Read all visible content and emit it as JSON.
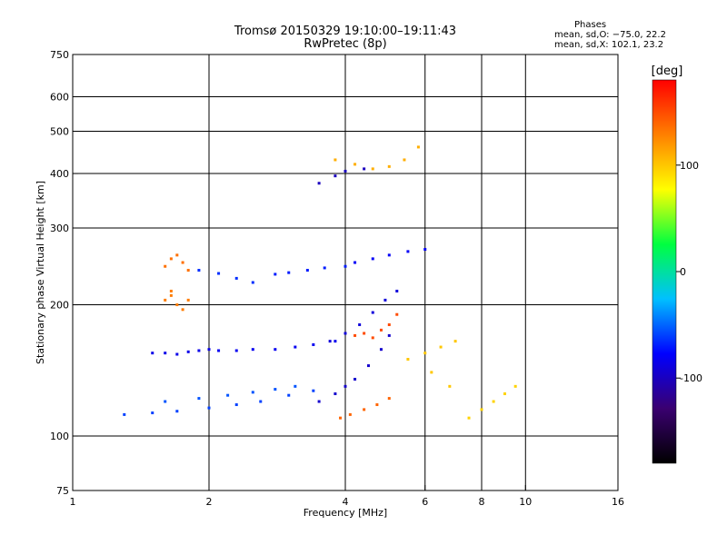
{
  "header": {
    "title": "Tromsø 20150329 19:10:00–19:11:43",
    "subtitle": "RwPretec (8p)"
  },
  "stats": {
    "heading": "Phases",
    "line_o": "mean, sd,O: −75.0, 22.2",
    "line_x": "mean, sd,X: 102.1, 23.2"
  },
  "chart_data": {
    "type": "scatter",
    "title": "Tromsø 20150329 19:10:00–19:11:43",
    "subtitle": "RwPretec (8p)",
    "xlabel": "Frequency [MHz]",
    "ylabel": "Stationary phase Virtual Height [km]",
    "x_scale": "log",
    "y_scale": "log",
    "xlim": [
      1,
      16
    ],
    "ylim": [
      75,
      750
    ],
    "x_ticks": [
      1,
      2,
      4,
      6,
      8,
      10,
      16
    ],
    "y_ticks": [
      75,
      100,
      200,
      300,
      400,
      500,
      600,
      750
    ],
    "x_gridlines": [
      2,
      4,
      6,
      8,
      10
    ],
    "y_gridlines": [
      100,
      200,
      300,
      400,
      500,
      600
    ],
    "grid": true,
    "colorbar": {
      "label": "[deg]",
      "ticks": [
        100,
        0,
        -100
      ],
      "range": [
        -180,
        180
      ],
      "colors": [
        "#000000",
        "#3a0070",
        "#0000ff",
        "#00c0ff",
        "#00ff40",
        "#ffff00",
        "#ff8000",
        "#ff0000"
      ]
    },
    "series": [
      {
        "o_trace": true,
        "phase": -85,
        "points": [
          [
            1.5,
            155
          ],
          [
            1.6,
            155
          ],
          [
            1.7,
            154
          ],
          [
            1.8,
            156
          ],
          [
            1.9,
            157
          ],
          [
            2.0,
            158
          ]
        ]
      },
      {
        "o_trace": true,
        "phase": -82,
        "points": [
          [
            2.1,
            157
          ],
          [
            2.3,
            157
          ],
          [
            2.5,
            158
          ],
          [
            2.8,
            158
          ],
          [
            3.1,
            160
          ],
          [
            3.4,
            162
          ],
          [
            3.8,
            165
          ]
        ]
      },
      {
        "o_trace": true,
        "phase": -60,
        "points": [
          [
            1.3,
            112
          ],
          [
            1.5,
            113
          ],
          [
            1.7,
            114
          ],
          [
            2.0,
            116
          ],
          [
            2.3,
            118
          ],
          [
            2.6,
            120
          ],
          [
            3.0,
            124
          ],
          [
            3.4,
            127
          ]
        ]
      },
      {
        "o_trace": true,
        "phase": -55,
        "points": [
          [
            1.6,
            120
          ],
          [
            1.9,
            122
          ],
          [
            2.2,
            124
          ],
          [
            2.5,
            126
          ],
          [
            2.8,
            128
          ],
          [
            3.1,
            130
          ]
        ]
      },
      {
        "o_trace": true,
        "phase": -95,
        "points": [
          [
            3.5,
            120
          ],
          [
            3.8,
            125
          ],
          [
            4.0,
            130
          ],
          [
            4.2,
            135
          ],
          [
            4.5,
            145
          ],
          [
            4.8,
            158
          ],
          [
            5.0,
            170
          ]
        ]
      },
      {
        "o_trace": true,
        "phase": -90,
        "points": [
          [
            3.7,
            165
          ],
          [
            4.0,
            172
          ],
          [
            4.3,
            180
          ],
          [
            4.6,
            192
          ],
          [
            4.9,
            205
          ],
          [
            5.2,
            215
          ]
        ]
      },
      {
        "o_trace": true,
        "phase": -80,
        "points": [
          [
            4.2,
            250
          ],
          [
            4.6,
            255
          ],
          [
            5.0,
            260
          ],
          [
            5.5,
            265
          ],
          [
            6.0,
            268
          ]
        ]
      },
      {
        "o_trace": true,
        "phase": -70,
        "points": [
          [
            2.8,
            235
          ],
          [
            3.0,
            237
          ],
          [
            3.3,
            240
          ],
          [
            3.6,
            243
          ],
          [
            4.0,
            245
          ]
        ]
      },
      {
        "o_trace": true,
        "phase": -65,
        "points": [
          [
            1.9,
            240
          ],
          [
            2.1,
            236
          ],
          [
            2.3,
            230
          ],
          [
            2.5,
            225
          ]
        ]
      },
      {
        "o_trace": true,
        "phase": -100,
        "points": [
          [
            3.5,
            380
          ],
          [
            3.8,
            395
          ],
          [
            4.0,
            405
          ],
          [
            4.4,
            410
          ]
        ]
      },
      {
        "o_trace": false,
        "phase": 130,
        "points": [
          [
            1.6,
            205
          ],
          [
            1.65,
            210
          ],
          [
            1.7,
            200
          ],
          [
            1.75,
            195
          ],
          [
            1.8,
            205
          ],
          [
            1.65,
            215
          ]
        ]
      },
      {
        "o_trace": false,
        "phase": 135,
        "points": [
          [
            1.6,
            245
          ],
          [
            1.65,
            255
          ],
          [
            1.7,
            260
          ],
          [
            1.75,
            250
          ],
          [
            1.8,
            240
          ]
        ]
      },
      {
        "o_trace": false,
        "phase": 150,
        "points": [
          [
            4.2,
            170
          ],
          [
            4.4,
            172
          ],
          [
            4.6,
            168
          ],
          [
            4.8,
            175
          ],
          [
            5.0,
            180
          ],
          [
            5.2,
            190
          ]
        ]
      },
      {
        "o_trace": false,
        "phase": 110,
        "points": [
          [
            3.8,
            430
          ],
          [
            4.2,
            420
          ],
          [
            4.6,
            410
          ],
          [
            5.0,
            415
          ],
          [
            5.4,
            430
          ],
          [
            5.8,
            460
          ]
        ]
      },
      {
        "o_trace": false,
        "phase": 100,
        "points": [
          [
            5.5,
            150
          ],
          [
            6.0,
            155
          ],
          [
            6.5,
            160
          ],
          [
            7.0,
            165
          ],
          [
            6.2,
            140
          ],
          [
            6.8,
            130
          ]
        ]
      },
      {
        "o_trace": false,
        "phase": 95,
        "points": [
          [
            7.5,
            110
          ],
          [
            8.0,
            115
          ],
          [
            8.5,
            120
          ],
          [
            9.0,
            125
          ],
          [
            9.5,
            130
          ]
        ]
      },
      {
        "o_trace": false,
        "phase": 140,
        "points": [
          [
            3.9,
            110
          ],
          [
            4.1,
            112
          ],
          [
            4.4,
            115
          ],
          [
            4.7,
            118
          ],
          [
            5.0,
            122
          ]
        ]
      }
    ]
  }
}
